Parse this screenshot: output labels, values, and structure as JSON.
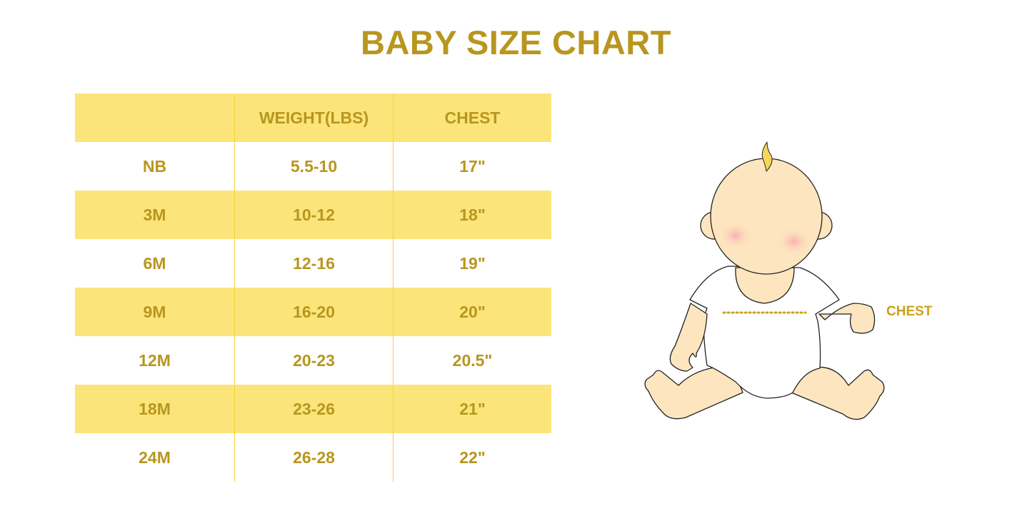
{
  "title": "BABY SIZE CHART",
  "table": {
    "headers": [
      "",
      "WEIGHT(LBS)",
      "CHEST"
    ],
    "rows": [
      [
        "NB",
        "5.5-10",
        "17\""
      ],
      [
        "3M",
        "10-12",
        "18\""
      ],
      [
        "6M",
        "12-16",
        "19\""
      ],
      [
        "9M",
        "16-20",
        "20\""
      ],
      [
        "12M",
        "20-23",
        "20.5\""
      ],
      [
        "18M",
        "23-26",
        "21\""
      ],
      [
        "24M",
        "26-28",
        "22\""
      ]
    ]
  },
  "illustration": {
    "chest_label": "CHEST"
  },
  "colors": {
    "accent_text": "#b8961f",
    "row_highlight": "#fbe57a",
    "skin": "#fde5bf"
  }
}
